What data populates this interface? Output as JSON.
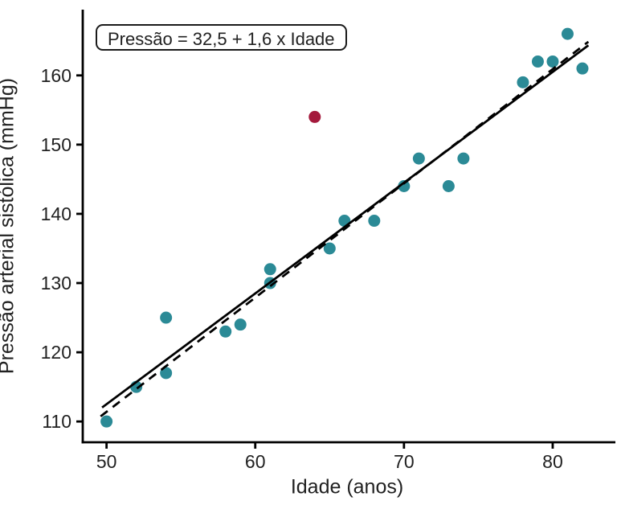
{
  "chart_data": {
    "type": "scatter",
    "title": "",
    "xlabel": "Idade (anos)",
    "ylabel": "Pressão arterial sistólica (mmHg)",
    "annotation": "Pressão = 32,5 + 1,6 x Idade",
    "xlim": [
      48.4,
      84.0
    ],
    "ylim": [
      107.0,
      169.5
    ],
    "x_ticks": [
      50,
      60,
      70,
      80
    ],
    "y_ticks": [
      110,
      120,
      130,
      140,
      150,
      160
    ],
    "grid": false,
    "legend": "none",
    "series": [
      {
        "name": "observacoes",
        "color": "#2B8A96",
        "points": [
          [
            50,
            110
          ],
          [
            52,
            115
          ],
          [
            54,
            117
          ],
          [
            54,
            125
          ],
          [
            58,
            123
          ],
          [
            59,
            124
          ],
          [
            61,
            130
          ],
          [
            61,
            132
          ],
          [
            65,
            135
          ],
          [
            66,
            139
          ],
          [
            68,
            139
          ],
          [
            70,
            144
          ],
          [
            71,
            148
          ],
          [
            73,
            144
          ],
          [
            74,
            148
          ],
          [
            78,
            159
          ],
          [
            79,
            162
          ],
          [
            80,
            162
          ],
          [
            81,
            166
          ],
          [
            82,
            161
          ]
        ]
      },
      {
        "name": "outlier",
        "color": "#A4193C",
        "points": [
          [
            64,
            154
          ]
        ]
      }
    ],
    "lines": [
      {
        "name": "regressao-solida",
        "style": "solid",
        "intercept": 32.5,
        "slope": 1.6,
        "x_start": 49.7,
        "x_end": 82.4
      },
      {
        "name": "regressao-tracejada",
        "style": "dashed",
        "intercept": 28.9,
        "slope": 1.65,
        "x_start": 49.6,
        "x_end": 82.4
      }
    ],
    "colors": {
      "point": "#2B8A96",
      "outlier": "#A4193C",
      "line": "#000000",
      "axis": "#000000",
      "text": "#212121"
    }
  }
}
